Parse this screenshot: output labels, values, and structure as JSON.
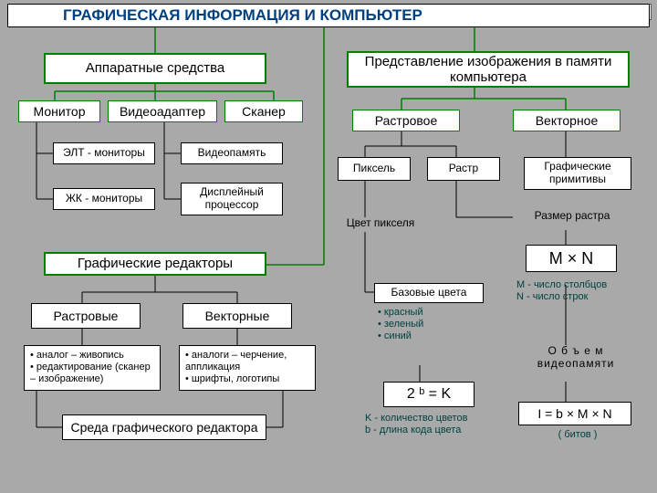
{
  "colors": {
    "bg": "#a9a9a9",
    "titleFill": "#ffffff",
    "titleBorder": "#000000",
    "titleText": "#004080",
    "greenBorder": "#008000",
    "greenLine": "#008000",
    "blackLine": "#000000",
    "boxFill": "#ffffff",
    "textDark": "#000000",
    "noteText": "#004040"
  },
  "fonts": {
    "title": 17,
    "big": 15,
    "med": 14,
    "small": 12,
    "tiny": 11
  },
  "title": "ГРАФИЧЕСКАЯ   ИНФОРМАЦИЯ   И   КОМПЬЮТЕР",
  "left": {
    "hardware": "Аппаратные  средства",
    "monitor": "Монитор",
    "videoadapter": "Видеоадаптер",
    "scanner": "Сканер",
    "elt": "ЭЛТ - мониторы",
    "lcd": "ЖК - мониторы",
    "videomem": "Видеопамять",
    "dispproc": "Дисплейный процессор",
    "editors": "Графические  редакторы",
    "raster": "Растровые",
    "vector": "Векторные",
    "rasterBullets": [
      "аналог – живопись",
      "редактирование (сканер – изображение)"
    ],
    "vectorBullets": [
      "аналоги – черчение, аппликация",
      "шрифты, логотипы"
    ],
    "env": "Среда  графического  редактора"
  },
  "right": {
    "repr": "Представление  изображения в  памяти  компьютера",
    "rasterRepr": "Растровое",
    "vectorRepr": "Векторное",
    "pixel": "Пиксель",
    "rastr": "Растр",
    "prim": "Графические примитивы",
    "pixColor": "Цвет  пикселя",
    "rastrSize": "Размер  растра",
    "mxn": "M × N",
    "mnnote": "M - число столбцов\nN - число строк",
    "baseColors": "Базовые  цвета",
    "colorBullets": [
      "красный",
      "зеленый",
      "синий"
    ],
    "formula1": "2 ᵇ = K",
    "formula1note": "K - количество цветов\nb - длина кода цвета",
    "volLabel": "О б ъ е м видеопамяти",
    "formula2": "I = b × M × N",
    "formula2note": "( битов )"
  }
}
